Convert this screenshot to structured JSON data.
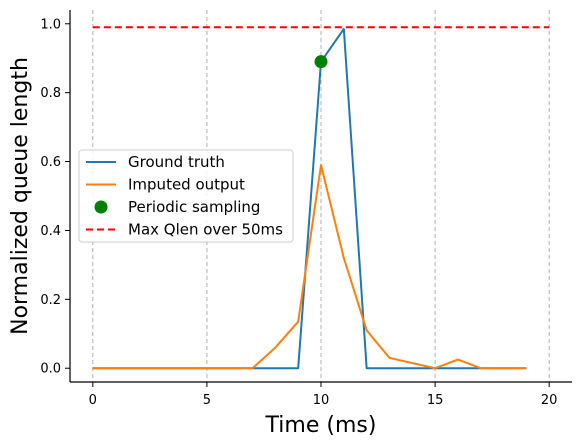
{
  "chart_data": {
    "type": "line",
    "title": "",
    "xlabel": "Time (ms)",
    "ylabel": "Normalized queue length",
    "xlim": [
      -1,
      21
    ],
    "ylim": [
      -0.04,
      1.04
    ],
    "xticks": [
      0,
      5,
      10,
      15,
      20
    ],
    "xtick_labels": [
      "0",
      "5",
      "10",
      "15",
      "20"
    ],
    "yticks": [
      0.0,
      0.2,
      0.4,
      0.6,
      0.8,
      1.0
    ],
    "ytick_labels": [
      "0.0",
      "0.2",
      "0.4",
      "0.6",
      "0.8",
      "1.0"
    ],
    "grid": "vertical dashed at x ticks",
    "legend_position": "center-left",
    "series": [
      {
        "name": "Ground truth",
        "kind": "line",
        "color": "#1f77b4",
        "x": [
          0,
          1,
          2,
          3,
          4,
          5,
          6,
          7,
          8,
          9,
          10,
          11,
          12,
          13,
          14,
          15,
          16,
          17,
          18,
          19
        ],
        "y": [
          0,
          0,
          0,
          0,
          0,
          0,
          0,
          0,
          0,
          0,
          0.89,
          0.985,
          0,
          0,
          0,
          0,
          0,
          0,
          0,
          0
        ]
      },
      {
        "name": "Imputed output",
        "kind": "line",
        "color": "#ff7f0e",
        "x": [
          0,
          1,
          2,
          3,
          4,
          5,
          6,
          7,
          8,
          9,
          10,
          11,
          12,
          13,
          14,
          15,
          16,
          17,
          18,
          19
        ],
        "y": [
          0,
          0,
          0,
          0,
          0,
          0,
          0,
          0,
          0.06,
          0.135,
          0.59,
          0.32,
          0.11,
          0.03,
          0.015,
          0,
          0.025,
          0,
          0,
          0
        ]
      },
      {
        "name": "Periodic sampling",
        "kind": "scatter",
        "color": "#008000",
        "x": [
          10
        ],
        "y": [
          0.89
        ]
      },
      {
        "name": "Max Qlen over 50ms",
        "kind": "dashed-line",
        "color": "#ff0000",
        "x": [
          0,
          20
        ],
        "y": [
          0.99,
          0.99
        ]
      }
    ]
  }
}
